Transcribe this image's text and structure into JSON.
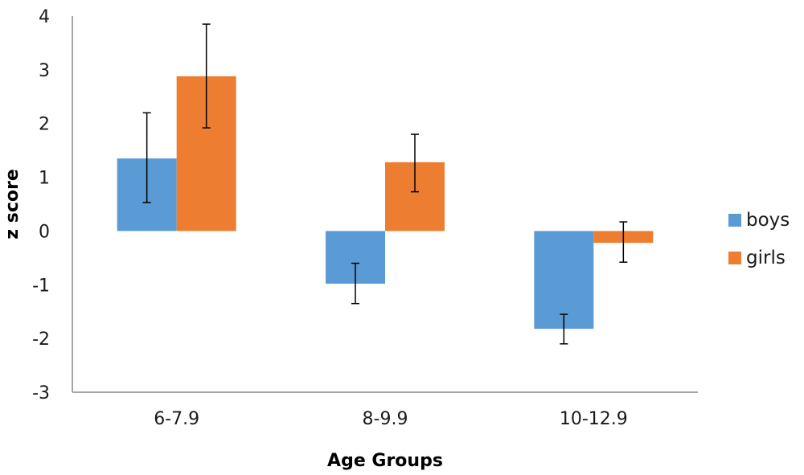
{
  "chart_data": {
    "type": "bar",
    "title": "",
    "xlabel": "Age Groups",
    "ylabel": "z score",
    "ylim": [
      -3,
      4
    ],
    "yticks": [
      -3,
      -2,
      -1,
      0,
      1,
      2,
      3,
      4
    ],
    "ytick_labels": [
      "-3",
      "-2",
      "-1",
      "0",
      "1",
      "2",
      "3",
      "4"
    ],
    "grid": false,
    "legend_position": "right",
    "categories": [
      "6-7.9",
      "8-9.9",
      "10-12.9"
    ],
    "series": [
      {
        "name": "boys",
        "color": "#5B9BD5",
        "values": [
          1.35,
          -0.98,
          -1.82
        ],
        "error_low": [
          0.53,
          -1.35,
          -2.1
        ],
        "error_high": [
          2.2,
          -0.6,
          -1.55
        ]
      },
      {
        "name": "girls",
        "color": "#ED7D31",
        "values": [
          2.88,
          1.28,
          -0.22
        ],
        "error_low": [
          1.92,
          0.73,
          -0.58
        ],
        "error_high": [
          3.85,
          1.8,
          0.17
        ]
      }
    ]
  }
}
